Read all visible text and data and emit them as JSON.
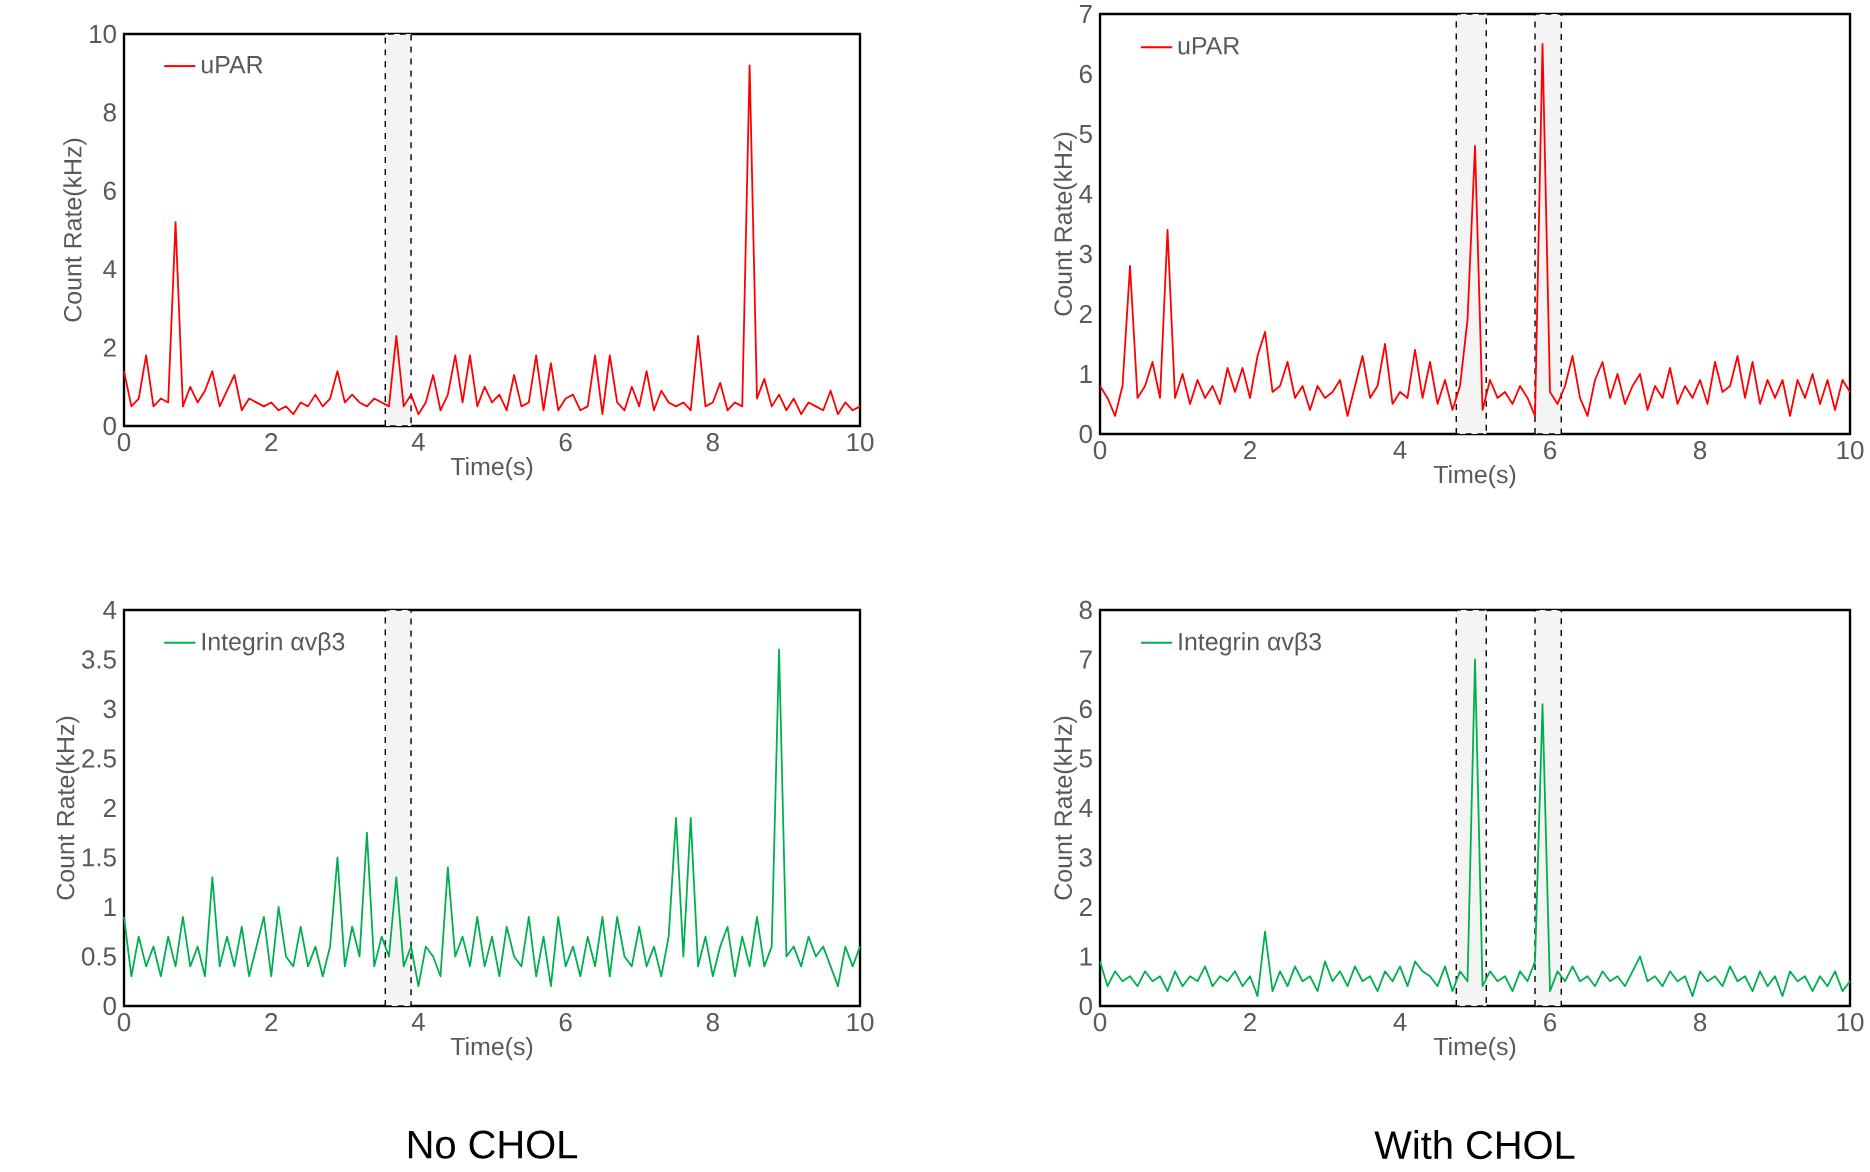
{
  "chart_data": [
    {
      "type": "line",
      "xlabel": "Time(s)",
      "ylabel": "Count Rate(kHz)",
      "legend": "top left",
      "xlim": [
        0,
        10
      ],
      "xticks": [
        0,
        2,
        4,
        6,
        8,
        10
      ],
      "ylim": [
        0,
        10
      ],
      "yticks": [
        0,
        2,
        4,
        6,
        8,
        10
      ],
      "x": [
        0,
        0.1,
        0.2,
        0.3,
        0.4,
        0.5,
        0.6,
        0.7,
        0.8,
        0.9,
        1.0,
        1.1,
        1.2,
        1.3,
        1.4,
        1.5,
        1.6,
        1.7,
        1.8,
        1.9,
        2.0,
        2.1,
        2.2,
        2.3,
        2.4,
        2.5,
        2.6,
        2.7,
        2.8,
        2.9,
        3.0,
        3.1,
        3.2,
        3.3,
        3.4,
        3.5,
        3.6,
        3.7,
        3.8,
        3.9,
        4.0,
        4.1,
        4.2,
        4.3,
        4.4,
        4.5,
        4.6,
        4.7,
        4.8,
        4.9,
        5.0,
        5.1,
        5.2,
        5.3,
        5.4,
        5.5,
        5.6,
        5.7,
        5.8,
        5.9,
        6.0,
        6.1,
        6.2,
        6.3,
        6.4,
        6.5,
        6.6,
        6.7,
        6.8,
        6.9,
        7.0,
        7.1,
        7.2,
        7.3,
        7.4,
        7.5,
        7.6,
        7.7,
        7.8,
        7.9,
        8.0,
        8.1,
        8.2,
        8.3,
        8.4,
        8.5,
        8.6,
        8.7,
        8.8,
        8.9,
        9.0,
        9.1,
        9.2,
        9.3,
        9.4,
        9.5,
        9.6,
        9.7,
        9.8,
        9.9,
        10.0
      ],
      "series": [
        {
          "name": "uPAR",
          "color": "#ff0000",
          "values": [
            1.4,
            0.5,
            0.7,
            1.8,
            0.5,
            0.7,
            0.6,
            5.2,
            0.5,
            1.0,
            0.6,
            0.9,
            1.4,
            0.5,
            0.9,
            1.3,
            0.4,
            0.7,
            0.6,
            0.5,
            0.6,
            0.4,
            0.5,
            0.3,
            0.6,
            0.5,
            0.8,
            0.5,
            0.7,
            1.4,
            0.6,
            0.8,
            0.6,
            0.5,
            0.7,
            0.6,
            0.5,
            2.3,
            0.5,
            0.8,
            0.3,
            0.6,
            1.3,
            0.4,
            0.8,
            1.8,
            0.6,
            1.8,
            0.5,
            1.0,
            0.6,
            0.8,
            0.4,
            1.3,
            0.5,
            0.6,
            1.8,
            0.4,
            1.6,
            0.4,
            0.7,
            0.8,
            0.4,
            0.5,
            1.8,
            0.3,
            1.8,
            0.6,
            0.4,
            1.0,
            0.5,
            1.4,
            0.4,
            0.9,
            0.6,
            0.5,
            0.6,
            0.4,
            2.3,
            0.5,
            0.6,
            1.1,
            0.4,
            0.6,
            0.5,
            9.2,
            0.7,
            1.2,
            0.5,
            0.8,
            0.4,
            0.7,
            0.3,
            0.6,
            0.5,
            0.4,
            0.9,
            0.3,
            0.6,
            0.4,
            0.5
          ]
        }
      ],
      "bands": [
        {
          "axis": "x",
          "from": 3.55,
          "to": 3.9,
          "color": "#f4f4f4"
        }
      ]
    },
    {
      "type": "line",
      "xlabel": "Time(s)",
      "ylabel": "Count Rate(kHz)",
      "legend": "top left",
      "xlim": [
        0,
        10
      ],
      "xticks": [
        0,
        2,
        4,
        6,
        8,
        10
      ],
      "ylim": [
        0,
        7
      ],
      "yticks": [
        0,
        1,
        2,
        3,
        4,
        5,
        6,
        7
      ],
      "x": [
        0,
        0.1,
        0.2,
        0.3,
        0.4,
        0.5,
        0.6,
        0.7,
        0.8,
        0.9,
        1.0,
        1.1,
        1.2,
        1.3,
        1.4,
        1.5,
        1.6,
        1.7,
        1.8,
        1.9,
        2.0,
        2.1,
        2.2,
        2.3,
        2.4,
        2.5,
        2.6,
        2.7,
        2.8,
        2.9,
        3.0,
        3.1,
        3.2,
        3.3,
        3.4,
        3.5,
        3.6,
        3.7,
        3.8,
        3.9,
        4.0,
        4.1,
        4.2,
        4.3,
        4.4,
        4.5,
        4.6,
        4.7,
        4.8,
        4.9,
        5.0,
        5.1,
        5.2,
        5.3,
        5.4,
        5.5,
        5.6,
        5.7,
        5.8,
        5.9,
        6.0,
        6.1,
        6.2,
        6.3,
        6.4,
        6.5,
        6.6,
        6.7,
        6.8,
        6.9,
        7.0,
        7.1,
        7.2,
        7.3,
        7.4,
        7.5,
        7.6,
        7.7,
        7.8,
        7.9,
        8.0,
        8.1,
        8.2,
        8.3,
        8.4,
        8.5,
        8.6,
        8.7,
        8.8,
        8.9,
        9.0,
        9.1,
        9.2,
        9.3,
        9.4,
        9.5,
        9.6,
        9.7,
        9.8,
        9.9,
        10.0
      ],
      "series": [
        {
          "name": "uPAR",
          "color": "#ff0000",
          "values": [
            0.8,
            0.6,
            0.3,
            0.8,
            2.8,
            0.6,
            0.8,
            1.2,
            0.6,
            3.4,
            0.6,
            1.0,
            0.5,
            0.9,
            0.6,
            0.8,
            0.5,
            1.1,
            0.7,
            1.1,
            0.6,
            1.3,
            1.7,
            0.7,
            0.8,
            1.2,
            0.6,
            0.8,
            0.4,
            0.8,
            0.6,
            0.7,
            0.9,
            0.3,
            0.8,
            1.3,
            0.6,
            0.8,
            1.5,
            0.5,
            0.7,
            0.6,
            1.4,
            0.6,
            1.2,
            0.5,
            0.9,
            0.4,
            0.8,
            1.9,
            4.8,
            0.4,
            0.9,
            0.6,
            0.7,
            0.5,
            0.8,
            0.6,
            0.3,
            6.5,
            0.7,
            0.5,
            0.8,
            1.3,
            0.6,
            0.3,
            0.9,
            1.2,
            0.6,
            1.0,
            0.5,
            0.8,
            1.0,
            0.4,
            0.8,
            0.6,
            1.1,
            0.5,
            0.8,
            0.6,
            0.9,
            0.5,
            1.2,
            0.7,
            0.8,
            1.3,
            0.6,
            1.2,
            0.5,
            0.9,
            0.6,
            0.9,
            0.3,
            0.9,
            0.6,
            1.0,
            0.5,
            0.9,
            0.4,
            0.9,
            0.7
          ]
        }
      ],
      "bands": [
        {
          "axis": "x",
          "from": 4.75,
          "to": 5.15,
          "color": "#f4f4f4"
        },
        {
          "axis": "x",
          "from": 5.8,
          "to": 6.15,
          "color": "#f4f4f4"
        }
      ]
    },
    {
      "type": "line",
      "xlabel": "Time(s)",
      "ylabel": "Count Rate(kHz)",
      "legend": "top left",
      "xlim": [
        0,
        10
      ],
      "xticks": [
        0,
        2,
        4,
        6,
        8,
        10
      ],
      "ylim": [
        0,
        4
      ],
      "yticks": [
        0,
        0.5,
        1,
        1.5,
        2,
        2.5,
        3,
        3.5,
        4
      ],
      "x": [
        0,
        0.1,
        0.2,
        0.3,
        0.4,
        0.5,
        0.6,
        0.7,
        0.8,
        0.9,
        1.0,
        1.1,
        1.2,
        1.3,
        1.4,
        1.5,
        1.6,
        1.7,
        1.8,
        1.9,
        2.0,
        2.1,
        2.2,
        2.3,
        2.4,
        2.5,
        2.6,
        2.7,
        2.8,
        2.9,
        3.0,
        3.1,
        3.2,
        3.3,
        3.4,
        3.5,
        3.6,
        3.7,
        3.8,
        3.9,
        4.0,
        4.1,
        4.2,
        4.3,
        4.4,
        4.5,
        4.6,
        4.7,
        4.8,
        4.9,
        5.0,
        5.1,
        5.2,
        5.3,
        5.4,
        5.5,
        5.6,
        5.7,
        5.8,
        5.9,
        6.0,
        6.1,
        6.2,
        6.3,
        6.4,
        6.5,
        6.6,
        6.7,
        6.8,
        6.9,
        7.0,
        7.1,
        7.2,
        7.3,
        7.4,
        7.5,
        7.6,
        7.7,
        7.8,
        7.9,
        8.0,
        8.1,
        8.2,
        8.3,
        8.4,
        8.5,
        8.6,
        8.7,
        8.8,
        8.9,
        9.0,
        9.1,
        9.2,
        9.3,
        9.4,
        9.5,
        9.6,
        9.7,
        9.8,
        9.9,
        10.0
      ],
      "series": [
        {
          "name": "Integrin αvβ3",
          "color": "#00b050",
          "values": [
            0.9,
            0.3,
            0.7,
            0.4,
            0.6,
            0.3,
            0.7,
            0.4,
            0.9,
            0.4,
            0.6,
            0.3,
            1.3,
            0.4,
            0.7,
            0.4,
            0.8,
            0.3,
            0.6,
            0.9,
            0.3,
            1.0,
            0.5,
            0.4,
            0.8,
            0.4,
            0.6,
            0.3,
            0.6,
            1.5,
            0.4,
            0.8,
            0.5,
            1.75,
            0.4,
            0.7,
            0.5,
            1.3,
            0.4,
            0.6,
            0.2,
            0.6,
            0.5,
            0.3,
            1.4,
            0.5,
            0.7,
            0.4,
            0.9,
            0.4,
            0.7,
            0.3,
            0.8,
            0.5,
            0.4,
            0.9,
            0.3,
            0.7,
            0.2,
            0.9,
            0.4,
            0.6,
            0.3,
            0.7,
            0.4,
            0.9,
            0.3,
            0.9,
            0.5,
            0.4,
            0.8,
            0.4,
            0.6,
            0.3,
            0.7,
            1.9,
            0.5,
            1.9,
            0.4,
            0.7,
            0.3,
            0.6,
            0.8,
            0.3,
            0.7,
            0.4,
            0.9,
            0.4,
            0.6,
            3.6,
            0.5,
            0.6,
            0.4,
            0.7,
            0.5,
            0.6,
            0.4,
            0.2,
            0.6,
            0.4,
            0.6
          ]
        }
      ],
      "bands": [
        {
          "axis": "x",
          "from": 3.55,
          "to": 3.9,
          "color": "#f4f4f4"
        }
      ],
      "annotations": [
        "No CHOL"
      ]
    },
    {
      "type": "line",
      "xlabel": "Time(s)",
      "ylabel": "Count Rate(kHz)",
      "legend": "top left",
      "xlim": [
        0,
        10
      ],
      "xticks": [
        0,
        2,
        4,
        6,
        8,
        10
      ],
      "ylim": [
        0,
        8
      ],
      "yticks": [
        0,
        1,
        2,
        3,
        4,
        5,
        6,
        7,
        8
      ],
      "x": [
        0,
        0.1,
        0.2,
        0.3,
        0.4,
        0.5,
        0.6,
        0.7,
        0.8,
        0.9,
        1.0,
        1.1,
        1.2,
        1.3,
        1.4,
        1.5,
        1.6,
        1.7,
        1.8,
        1.9,
        2.0,
        2.1,
        2.2,
        2.3,
        2.4,
        2.5,
        2.6,
        2.7,
        2.8,
        2.9,
        3.0,
        3.1,
        3.2,
        3.3,
        3.4,
        3.5,
        3.6,
        3.7,
        3.8,
        3.9,
        4.0,
        4.1,
        4.2,
        4.3,
        4.4,
        4.5,
        4.6,
        4.7,
        4.8,
        4.9,
        5.0,
        5.1,
        5.2,
        5.3,
        5.4,
        5.5,
        5.6,
        5.7,
        5.8,
        5.9,
        6.0,
        6.1,
        6.2,
        6.3,
        6.4,
        6.5,
        6.6,
        6.7,
        6.8,
        6.9,
        7.0,
        7.1,
        7.2,
        7.3,
        7.4,
        7.5,
        7.6,
        7.7,
        7.8,
        7.9,
        8.0,
        8.1,
        8.2,
        8.3,
        8.4,
        8.5,
        8.6,
        8.7,
        8.8,
        8.9,
        9.0,
        9.1,
        9.2,
        9.3,
        9.4,
        9.5,
        9.6,
        9.7,
        9.8,
        9.9,
        10.0
      ],
      "series": [
        {
          "name": "Integrin αvβ3",
          "color": "#00b050",
          "values": [
            0.9,
            0.4,
            0.7,
            0.5,
            0.6,
            0.4,
            0.7,
            0.5,
            0.6,
            0.3,
            0.7,
            0.4,
            0.6,
            0.5,
            0.8,
            0.4,
            0.6,
            0.5,
            0.7,
            0.4,
            0.6,
            0.2,
            1.5,
            0.3,
            0.7,
            0.4,
            0.8,
            0.5,
            0.6,
            0.3,
            0.9,
            0.5,
            0.7,
            0.4,
            0.8,
            0.5,
            0.6,
            0.3,
            0.7,
            0.5,
            0.8,
            0.4,
            0.9,
            0.7,
            0.6,
            0.4,
            0.8,
            0.3,
            0.7,
            0.5,
            7.0,
            0.4,
            0.7,
            0.5,
            0.6,
            0.3,
            0.7,
            0.5,
            0.9,
            6.1,
            0.3,
            0.7,
            0.5,
            0.8,
            0.5,
            0.6,
            0.4,
            0.7,
            0.5,
            0.6,
            0.4,
            0.7,
            1.0,
            0.5,
            0.6,
            0.4,
            0.7,
            0.5,
            0.6,
            0.2,
            0.7,
            0.5,
            0.6,
            0.4,
            0.8,
            0.5,
            0.6,
            0.3,
            0.7,
            0.4,
            0.6,
            0.2,
            0.7,
            0.5,
            0.6,
            0.3,
            0.6,
            0.4,
            0.7,
            0.3,
            0.5
          ]
        }
      ],
      "bands": [
        {
          "axis": "x",
          "from": 4.75,
          "to": 5.15,
          "color": "#f4f4f4"
        },
        {
          "axis": "x",
          "from": 5.8,
          "to": 6.15,
          "color": "#f4f4f4"
        }
      ],
      "annotations": [
        "With CHOL"
      ]
    }
  ]
}
